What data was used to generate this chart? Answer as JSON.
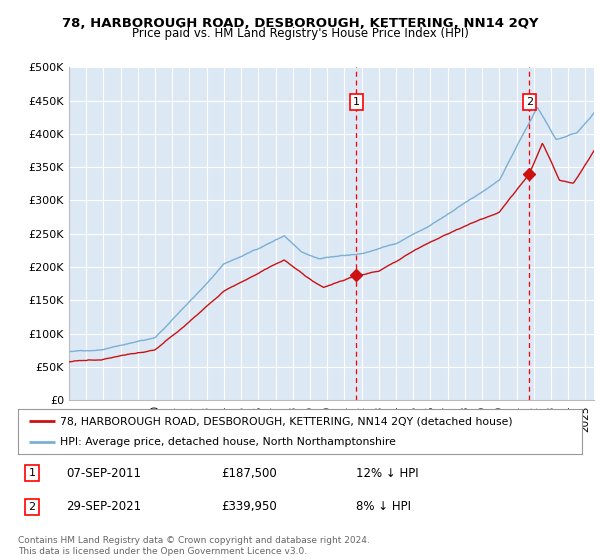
{
  "title": "78, HARBOROUGH ROAD, DESBOROUGH, KETTERING, NN14 2QY",
  "subtitle": "Price paid vs. HM Land Registry's House Price Index (HPI)",
  "background_color": "#ffffff",
  "plot_bg_color": "#dde8f5",
  "grid_color": "#ffffff",
  "ylim": [
    0,
    500000
  ],
  "yticks": [
    0,
    50000,
    100000,
    150000,
    200000,
    250000,
    300000,
    350000,
    400000,
    450000,
    500000
  ],
  "ytick_labels": [
    "£0",
    "£50K",
    "£100K",
    "£150K",
    "£200K",
    "£250K",
    "£300K",
    "£350K",
    "£400K",
    "£450K",
    "£500K"
  ],
  "xlim_start": 1995.0,
  "xlim_end": 2025.5,
  "hpi_color": "#7bafd4",
  "property_color": "#cc1111",
  "transaction1_x": 2011.69,
  "transaction1_y": 187500,
  "transaction2_x": 2021.75,
  "transaction2_y": 339950,
  "legend_line1": "78, HARBOROUGH ROAD, DESBOROUGH, KETTERING, NN14 2QY (detached house)",
  "legend_line2": "HPI: Average price, detached house, North Northamptonshire",
  "transaction1_date": "07-SEP-2011",
  "transaction1_price": "£187,500",
  "transaction1_hpi": "12% ↓ HPI",
  "transaction2_date": "29-SEP-2021",
  "transaction2_price": "£339,950",
  "transaction2_hpi": "8% ↓ HPI",
  "footer": "Contains HM Land Registry data © Crown copyright and database right 2024.\nThis data is licensed under the Open Government Licence v3.0."
}
